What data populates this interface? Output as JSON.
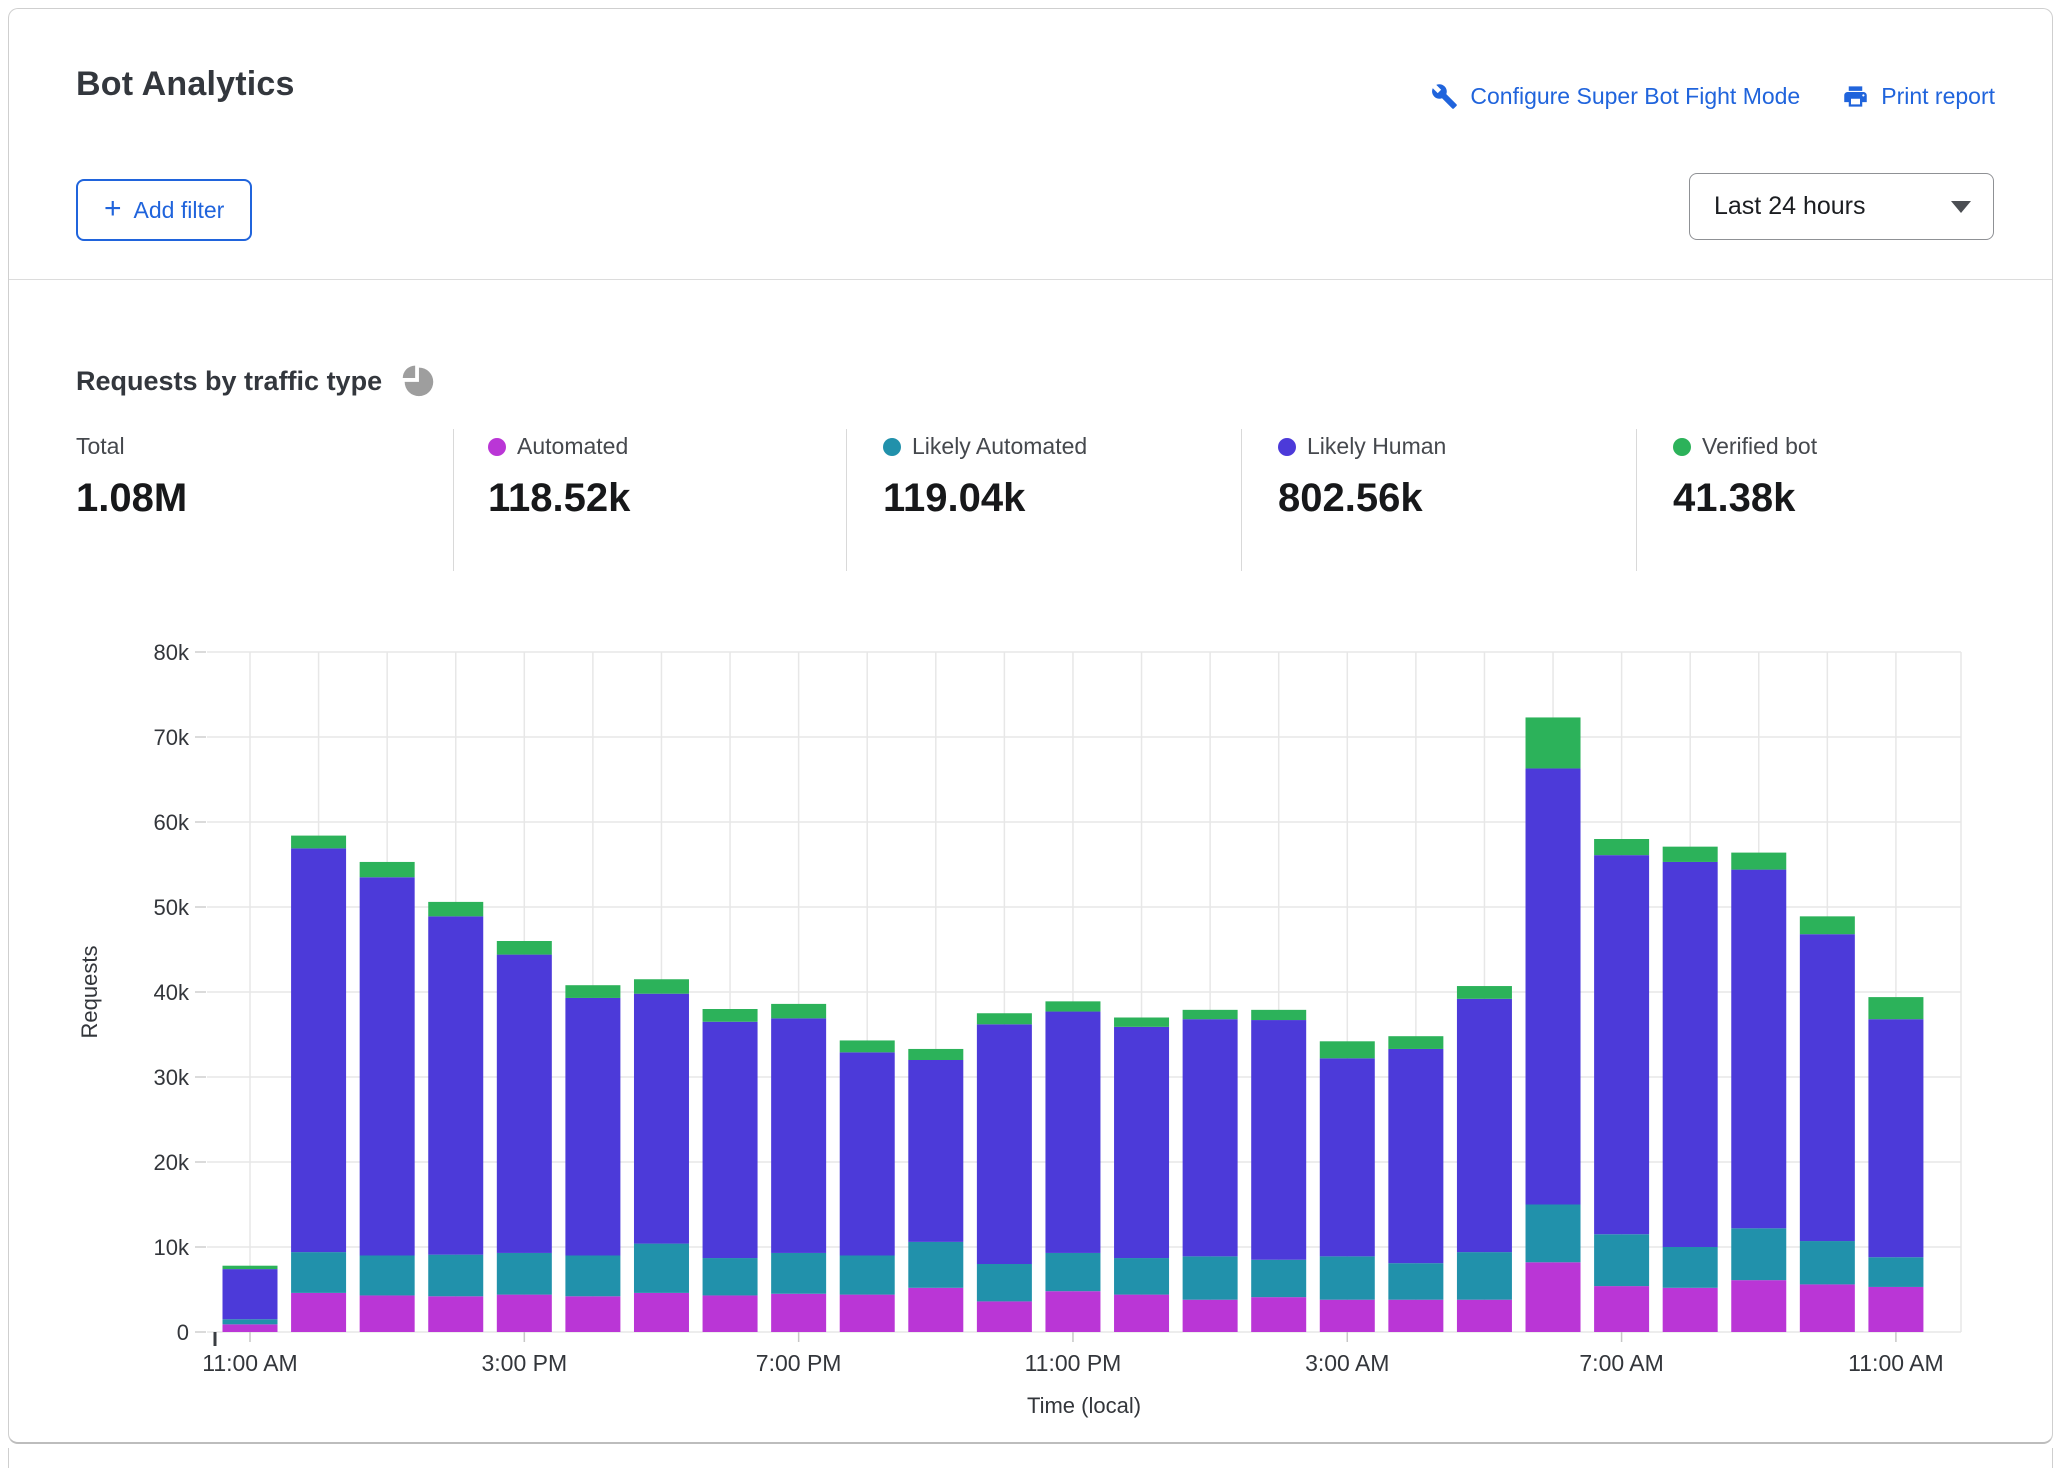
{
  "header": {
    "title": "Bot Analytics",
    "configure_link": "Configure Super Bot Fight Mode",
    "print_link": "Print report",
    "add_filter_label": "Add filter",
    "plus_glyph": "+",
    "time_range_value": "Last 24 hours"
  },
  "section": {
    "title": "Requests by traffic type"
  },
  "stats": {
    "items": [
      {
        "label": "Total",
        "value": "1.08M",
        "dot": ""
      },
      {
        "label": "Automated",
        "value": "118.52k",
        "dot": "automated"
      },
      {
        "label": "Likely Automated",
        "value": "119.04k",
        "dot": "likely_automated"
      },
      {
        "label": "Likely Human",
        "value": "802.56k",
        "dot": "likely_human"
      },
      {
        "label": "Verified bot",
        "value": "41.38k",
        "dot": "verified_bot"
      }
    ]
  },
  "colors": {
    "automated": "#ba36d6",
    "likely_automated": "#2191ab",
    "likely_human": "#4c3ad9",
    "verified_bot": "#2cb25a",
    "link_blue": "#2064dc",
    "gridline": "#e7e7e7",
    "axis_text": "#33363b",
    "icon_gray": "#9e9e9e"
  },
  "chart_data": {
    "type": "bar",
    "stacked": true,
    "title": "Requests by traffic type",
    "xlabel": "Time (local)",
    "ylabel": "Requests",
    "ylim": [
      0,
      80000
    ],
    "grid": true,
    "y_tick_labels": [
      "0",
      "10k",
      "20k",
      "30k",
      "40k",
      "50k",
      "60k",
      "70k",
      "80k"
    ],
    "x_tick_labels": [
      "11:00 AM",
      "3:00 PM",
      "7:00 PM",
      "11:00 PM",
      "3:00 AM",
      "7:00 AM",
      "11:00 AM"
    ],
    "x_tick_every": 4,
    "categories": [
      "11:00 AM",
      "12:00 PM",
      "1:00 PM",
      "2:00 PM",
      "3:00 PM",
      "4:00 PM",
      "5:00 PM",
      "6:00 PM",
      "7:00 PM",
      "8:00 PM",
      "9:00 PM",
      "10:00 PM",
      "11:00 PM",
      "12:00 AM",
      "1:00 AM",
      "2:00 AM",
      "3:00 AM",
      "4:00 AM",
      "5:00 AM",
      "6:00 AM",
      "7:00 AM",
      "8:00 AM",
      "9:00 AM",
      "10:00 AM",
      "11:00 AM"
    ],
    "series": [
      {
        "name": "Automated",
        "color_key": "automated",
        "values": [
          900,
          4600,
          4300,
          4200,
          4400,
          4200,
          4600,
          4300,
          4500,
          4400,
          5200,
          3600,
          4800,
          4400,
          3800,
          4100,
          3800,
          3800,
          3800,
          8200,
          5400,
          5200,
          6100,
          5600,
          5300
        ]
      },
      {
        "name": "Likely Automated",
        "color_key": "likely_automated",
        "values": [
          600,
          4800,
          4700,
          4900,
          4900,
          4800,
          5800,
          4400,
          4800,
          4600,
          5400,
          4400,
          4500,
          4300,
          5100,
          4400,
          5100,
          4300,
          5600,
          6800,
          6100,
          4800,
          6100,
          5100,
          3500
        ]
      },
      {
        "name": "Likely Human",
        "color_key": "likely_human",
        "values": [
          5900,
          47500,
          44500,
          39800,
          35100,
          30300,
          29400,
          27800,
          27600,
          23900,
          21400,
          28200,
          28400,
          27200,
          27900,
          28200,
          23300,
          25200,
          29800,
          51300,
          44600,
          45300,
          42200,
          36100,
          28000
        ]
      },
      {
        "name": "Verified bot",
        "color_key": "verified_bot",
        "values": [
          400,
          1500,
          1800,
          1700,
          1600,
          1500,
          1700,
          1500,
          1700,
          1400,
          1300,
          1300,
          1200,
          1100,
          1100,
          1200,
          2000,
          1500,
          1500,
          6000,
          1900,
          1800,
          2000,
          2100,
          2600
        ]
      }
    ],
    "legend_position": "top"
  }
}
